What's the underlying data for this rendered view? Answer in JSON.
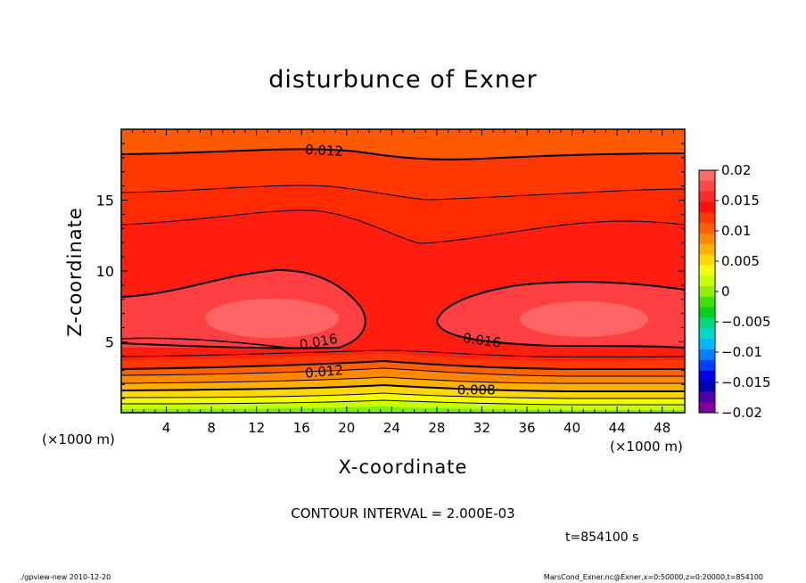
{
  "chart_data": {
    "type": "heatmap",
    "title": "disturbunce of Exner",
    "xlabel": "X-coordinate",
    "ylabel": "Z-coordinate",
    "x_unit_left": "(×1000 m)",
    "x_unit_right": "(×1000 m)",
    "xlim": [
      0,
      50
    ],
    "ylim": [
      0,
      20
    ],
    "x_ticks": [
      4,
      8,
      12,
      16,
      20,
      24,
      28,
      32,
      36,
      40,
      44,
      48
    ],
    "y_ticks": [
      5,
      10,
      15
    ],
    "contour_interval_text": "CONTOUR INTERVAL = 2.000E-03",
    "time_text": "t=854100 s",
    "contour_labels": [
      {
        "text": "0.012",
        "x": 18,
        "z": 18.5,
        "angle": 3
      },
      {
        "text": "0.016",
        "x": 17.5,
        "z": 5.0,
        "angle": -10
      },
      {
        "text": "0.016",
        "x": 32,
        "z": 5.1,
        "angle": 8
      },
      {
        "text": "0.012",
        "x": 18,
        "z": 2.9,
        "angle": -5
      },
      {
        "text": "0.008",
        "x": 31.5,
        "z": 1.6,
        "angle": 0
      }
    ],
    "colorbar": {
      "ticks": [
        "0.02",
        "0.015",
        "0.01",
        "0.005",
        "0",
        "−0.005",
        "−0.01",
        "−0.015",
        "−0.02"
      ],
      "levels": [
        0.02,
        0.015,
        0.01,
        0.005,
        0,
        -0.005,
        -0.01,
        -0.015,
        -0.02
      ],
      "colors": [
        "#ff6a6a",
        "#ff4848",
        "#ff2a2a",
        "#ff0e0e",
        "#ff3a00",
        "#ff6000",
        "#ff8a00",
        "#ffb000",
        "#ffd800",
        "#f4ff00",
        "#c8ff00",
        "#90f000",
        "#40e000",
        "#00d020",
        "#00d880",
        "#00d8c8",
        "#00b8ff",
        "#0080ff",
        "#0040ff",
        "#0000e8",
        "#0000b0",
        "#5000a8",
        "#8000a0"
      ]
    }
  },
  "footer": {
    "left": "./gpview-new  2010-12-20",
    "right": "MarsCond_Exner.nc@Exner,x=0:50000,z=0:20000,t=854100"
  }
}
